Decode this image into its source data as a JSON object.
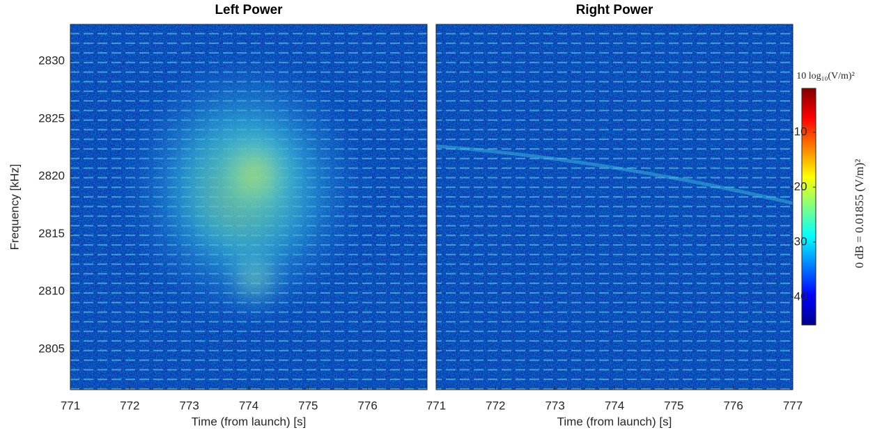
{
  "chart_data": [
    {
      "type": "heatmap",
      "title": "Left Power",
      "xlabel": "Time (from launch) [s]",
      "ylabel": "Frequency [kHz]",
      "xlim": [
        771,
        777
      ],
      "xticks": [
        771,
        772,
        773,
        774,
        775,
        776
      ],
      "ylim": [
        2801.5,
        2833.2
      ],
      "yticks": [
        2805,
        2810,
        2815,
        2820,
        2825,
        2830
      ]
    },
    {
      "type": "heatmap",
      "title": "Right Power",
      "xlabel": "Time (from launch) [s]",
      "xlim": [
        771,
        777
      ],
      "xticks": [
        771,
        772,
        773,
        774,
        775,
        776,
        777
      ],
      "ylim": [
        2801.5,
        2833.2
      ],
      "yticks": [
        2805,
        2810,
        2815,
        2820,
        2825,
        2830
      ]
    }
  ],
  "colorbar": {
    "label": "10 log₁₀(V/m)²",
    "side_label": "0 dB = 0.01855 (V/m)²",
    "colormap": "jet",
    "clim": [
      -45.1,
      -2
    ],
    "ticks": [
      -40,
      -30,
      -20,
      -10
    ]
  }
}
